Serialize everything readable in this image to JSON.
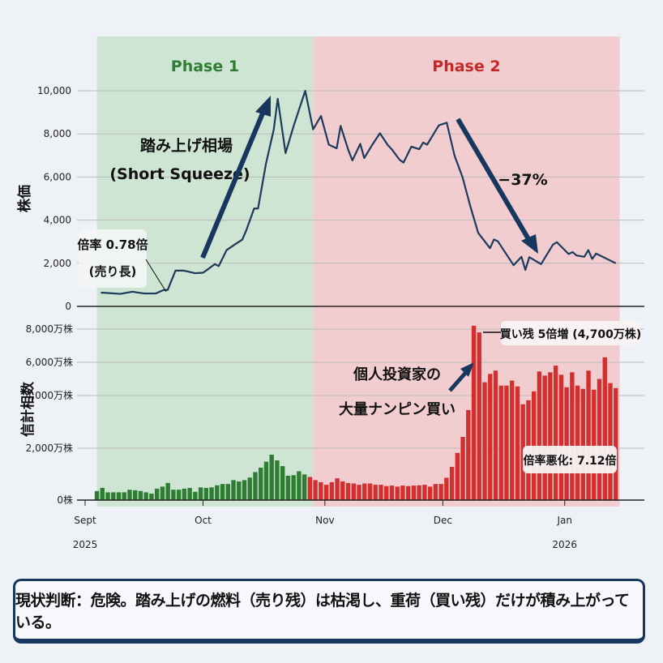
{
  "chart_data": [
    {
      "type": "line",
      "ylabel": "株価",
      "ylim": [
        0,
        10000
      ],
      "yticks": [
        "0",
        "2,000",
        "4,000",
        "6,000",
        "8,000",
        "10,000"
      ],
      "ytick_values": [
        0,
        2000,
        4000,
        6000,
        8000,
        10000
      ],
      "grid": true,
      "color": "#1b3a5c",
      "phases": [
        {
          "label": "Phase 1",
          "start": "2025-09-04",
          "end": "2025-10-29",
          "color": "#cde5d2",
          "label_color": "#2e7d32"
        },
        {
          "label": "Phase 2",
          "start": "2025-10-29",
          "end": "2026-01-15",
          "color": "#f1cdd0",
          "label_color": "#c62828"
        }
      ],
      "x": [
        "2025-09-05",
        "2025-09-10",
        "2025-09-13",
        "2025-09-16",
        "2025-09-19",
        "2025-09-21",
        "2025-09-22",
        "2025-09-24",
        "2025-09-26",
        "2025-09-29",
        "2025-10-01",
        "2025-10-02",
        "2025-10-04",
        "2025-10-05",
        "2025-10-07",
        "2025-10-09",
        "2025-10-11",
        "2025-10-12",
        "2025-10-14",
        "2025-10-15",
        "2025-10-17",
        "2025-10-19",
        "2025-10-20",
        "2025-10-22",
        "2025-10-24",
        "2025-10-27",
        "2025-10-29",
        "2025-10-31",
        "2025-11-02",
        "2025-11-04",
        "2025-11-05",
        "2025-11-07",
        "2025-11-08",
        "2025-11-10",
        "2025-11-11",
        "2025-11-13",
        "2025-11-15",
        "2025-11-17",
        "2025-11-18",
        "2025-11-20",
        "2025-11-21",
        "2025-11-23",
        "2025-11-25",
        "2025-11-26",
        "2025-11-27",
        "2025-11-30",
        "2025-12-02",
        "2025-12-04",
        "2025-12-06",
        "2025-12-08",
        "2025-12-10",
        "2025-12-13",
        "2025-12-14",
        "2025-12-15",
        "2025-12-19",
        "2025-12-21",
        "2025-12-22",
        "2025-12-23",
        "2025-12-26",
        "2025-12-29",
        "2025-12-30",
        "2026-01-02",
        "2026-01-03",
        "2026-01-04",
        "2026-01-06",
        "2026-01-07",
        "2026-01-08",
        "2026-01-09",
        "2026-01-14"
      ],
      "y": [
        640,
        580,
        680,
        600,
        600,
        760,
        760,
        1660,
        1660,
        1540,
        1560,
        1690,
        1960,
        1870,
        2610,
        2860,
        3100,
        3530,
        4540,
        4540,
        6610,
        8210,
        9630,
        7110,
        8340,
        10000,
        8210,
        8830,
        7500,
        7330,
        8370,
        7230,
        6770,
        7540,
        6880,
        7480,
        8030,
        7480,
        7290,
        6800,
        6670,
        7410,
        7290,
        7600,
        7500,
        8400,
        8520,
        6980,
        6000,
        4640,
        3410,
        2700,
        3100,
        3020,
        1910,
        2300,
        1690,
        2280,
        1960,
        2860,
        2980,
        2430,
        2520,
        2360,
        2300,
        2610,
        2200,
        2450,
        2000
      ],
      "annotations": {
        "squeeze_line1": "踏み上げ相場",
        "squeeze_line2": "(Short Squeeze)",
        "ratio_line1": "倍率 0.78倍",
        "ratio_line2": "(売り長)",
        "drop": "−37%"
      }
    },
    {
      "type": "bar",
      "ylabel": "信計相数",
      "yticks": [
        "0株",
        "2,000万株",
        "4,000万株",
        "6,000万株",
        "8,000万株"
      ],
      "ytick_values": [
        0,
        2000,
        4000,
        6000,
        8000
      ],
      "unit": "万株",
      "grid": true,
      "period": [
        "2025-09-04",
        "2026-01-14"
      ],
      "colors": {
        "phase1": "#2e7d32",
        "phase2": "#d32f2f"
      },
      "phase1_values": [
        350,
        470,
        300,
        300,
        300,
        300,
        400,
        380,
        350,
        300,
        250,
        440,
        520,
        660,
        400,
        400,
        440,
        470,
        320,
        490,
        470,
        490,
        570,
        620,
        620,
        770,
        720,
        770,
        870,
        1080,
        1250,
        1480,
        1750,
        1530,
        1310,
        940,
        960,
        1110,
        990
      ],
      "phase2_values": [
        890,
        770,
        690,
        590,
        690,
        840,
        720,
        660,
        640,
        590,
        640,
        640,
        590,
        590,
        540,
        560,
        520,
        560,
        540,
        560,
        570,
        590,
        520,
        620,
        620,
        860,
        1280,
        1820,
        2430,
        3450,
        8200,
        7800,
        4800,
        5300,
        5500,
        4600,
        4600,
        4900,
        4550,
        3670,
        3820,
        4250,
        5450,
        5200,
        5400,
        5800,
        5250,
        4500,
        5400,
        4600,
        4400,
        5500,
        4350,
        5000,
        6300,
        4750,
        4450
      ],
      "annotations": {
        "buy_label": "買い残 5倍増 (4,700万株)",
        "retail_line1": "個人投資家の",
        "retail_line2": "大量ナンピン買い",
        "ratio_label": "倍率悪化: 7.12倍"
      }
    }
  ],
  "xaxis": {
    "ticks": [
      {
        "date": "2025-09-01",
        "label": "Sept",
        "year": "2025"
      },
      {
        "date": "2025-10-01",
        "label": "Oct",
        "year": ""
      },
      {
        "date": "2025-11-01",
        "label": "Nov",
        "year": ""
      },
      {
        "date": "2025-12-01",
        "label": "Dec",
        "year": ""
      },
      {
        "date": "2026-01-01",
        "label": "Jan",
        "year": "2026"
      }
    ]
  },
  "banner": {
    "text": "現状判断：危険。踏み上げの燃料（売り残）は枯渇し、重荷（買い残）だけが積み上がっている。"
  }
}
